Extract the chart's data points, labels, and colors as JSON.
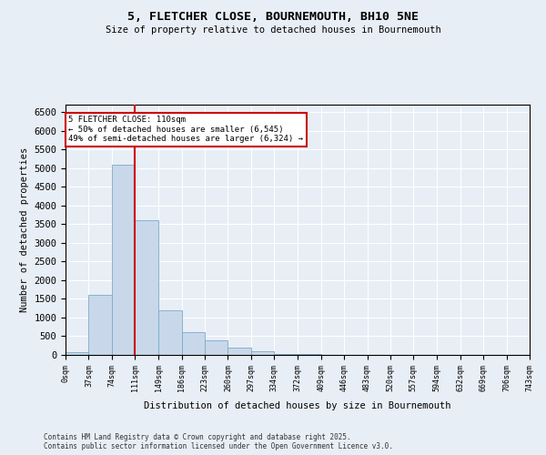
{
  "title1": "5, FLETCHER CLOSE, BOURNEMOUTH, BH10 5NE",
  "title2": "Size of property relative to detached houses in Bournemouth",
  "xlabel": "Distribution of detached houses by size in Bournemouth",
  "ylabel": "Number of detached properties",
  "bar_edges": [
    0,
    37,
    74,
    111,
    149,
    186,
    223,
    260,
    297,
    334,
    372,
    409,
    446,
    483,
    520,
    557,
    594,
    632,
    669,
    706,
    743
  ],
  "bar_heights": [
    80,
    1600,
    5100,
    3600,
    1200,
    600,
    400,
    200,
    100,
    30,
    15,
    5,
    2,
    1,
    0,
    0,
    0,
    0,
    0,
    0
  ],
  "bar_color": "#c8d8ea",
  "bar_edgecolor": "#7aaac8",
  "vline_x": 111,
  "vline_color": "#cc0000",
  "annotation_title": "5 FLETCHER CLOSE: 110sqm",
  "annotation_line1": "← 50% of detached houses are smaller (6,545)",
  "annotation_line2": "49% of semi-detached houses are larger (6,324) →",
  "annotation_box_color": "#cc0000",
  "ylim": [
    0,
    6700
  ],
  "yticks": [
    0,
    500,
    1000,
    1500,
    2000,
    2500,
    3000,
    3500,
    4000,
    4500,
    5000,
    5500,
    6000,
    6500
  ],
  "footnote1": "Contains HM Land Registry data © Crown copyright and database right 2025.",
  "footnote2": "Contains public sector information licensed under the Open Government Licence v3.0.",
  "bg_color": "#e8eef5",
  "plot_bg_color": "#e8eef5"
}
